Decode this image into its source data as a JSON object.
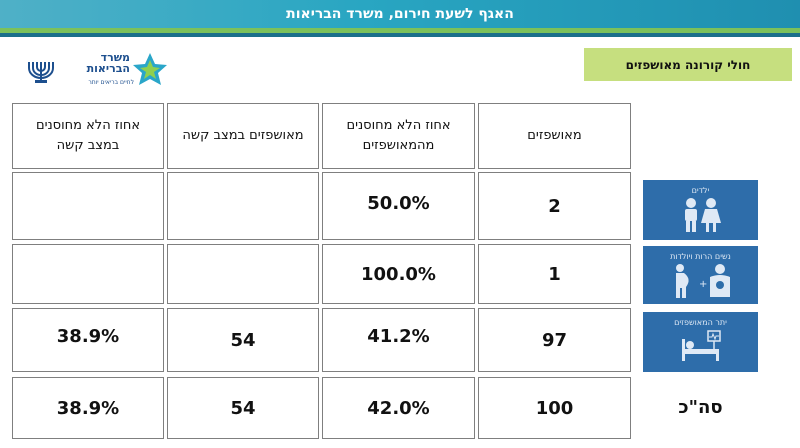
{
  "header": {
    "banner": "האגף לשעת חירום, משרד הבריאות",
    "section_title": "חולי קורונה מאושפזים"
  },
  "logo": {
    "line1": "משרד",
    "line2": "הבריאות",
    "tagline": "לחיים בריאים יותר"
  },
  "table": {
    "headers": {
      "hospitalized": "מאושפזים",
      "unvaccinated_pct_hospitalized": "אחוז הלא מחוסנים מהמאושפזים",
      "severe": "מאושפזים במצב קשה",
      "unvaccinated_pct_severe": "אחוז הלא מחוסנים במצב קשה"
    },
    "rows": [
      {
        "category": "ילדים",
        "icon": "children-icon",
        "hospitalized": "2",
        "unvaccinated_pct_hospitalized": "50.0%",
        "severe": "",
        "unvaccinated_pct_severe": ""
      },
      {
        "category": "נשים הרות ויולדות",
        "icon": "pregnant-women-icon",
        "hospitalized": "1",
        "unvaccinated_pct_hospitalized": "100.0%",
        "severe": "",
        "unvaccinated_pct_severe": ""
      },
      {
        "category": "יתר המאושפזים",
        "icon": "hospital-bed-icon",
        "hospitalized": "97",
        "unvaccinated_pct_hospitalized": "41.2%",
        "severe": "54",
        "unvaccinated_pct_severe": "38.9%"
      }
    ],
    "total": {
      "label": "סה\"כ",
      "hospitalized": "100",
      "unvaccinated_pct_hospitalized": "42.0%",
      "severe": "54",
      "unvaccinated_pct_severe": "38.9%"
    }
  },
  "colors": {
    "banner": "#29a6c2",
    "green_stripe": "#7cc15a",
    "teal_stripe": "#1b6f8a",
    "section_label_bg": "#c6df7f",
    "category_bg": "#2e6daa",
    "border": "#7f7f7f"
  }
}
